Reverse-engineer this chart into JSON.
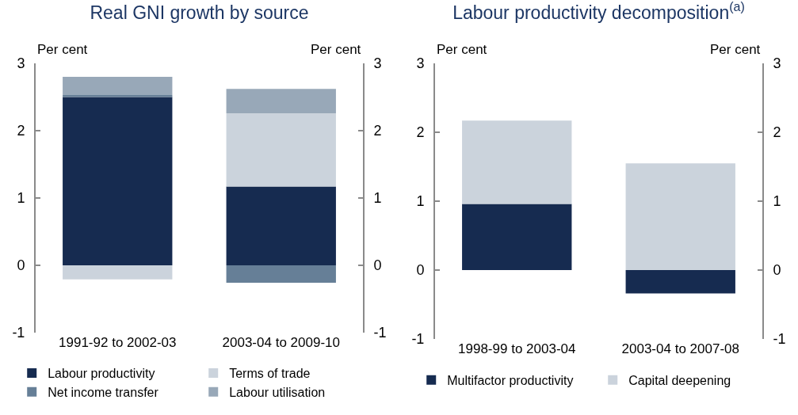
{
  "chart_data": [
    {
      "type": "bar",
      "title": "Real GNI growth by source",
      "ylabel": "Per cent",
      "y2label": "Per cent",
      "categories": [
        "1991-92 to 2002-03",
        "2003-04 to 2009-10"
      ],
      "stacked": true,
      "series": [
        {
          "name": "Labour productivity",
          "color": "#162b50",
          "values": [
            2.5,
            1.17
          ]
        },
        {
          "name": "Terms of trade",
          "color": "#cbd3dc",
          "values": [
            -0.21,
            1.09
          ]
        },
        {
          "name": "Net income transfer",
          "color": "#667f97",
          "values": [
            0.03,
            -0.26
          ]
        },
        {
          "name": "Labour utilisation",
          "color": "#98a8b8",
          "values": [
            0.27,
            0.36
          ]
        }
      ],
      "ylim": [
        -1,
        3
      ],
      "yticks": [
        -1,
        0,
        1,
        2,
        3
      ],
      "y2lim": [
        -1,
        3
      ],
      "y2ticks": [
        -1,
        0,
        1,
        2,
        3
      ],
      "grid": false,
      "legend": "bottom"
    },
    {
      "type": "bar",
      "title": "Labour productivity decomposition$^{(a)}$",
      "ylabel": "Per cent",
      "y2label": "Per cent",
      "categories": [
        "1998-99 to 2003-04",
        "2003-04 to 2007-08"
      ],
      "stacked": true,
      "series": [
        {
          "name": "Multifactor productivity",
          "color": "#162b50",
          "values": [
            0.96,
            -0.34
          ]
        },
        {
          "name": "Capital deepening",
          "color": "#cbd3dc",
          "values": [
            1.21,
            1.55
          ]
        }
      ],
      "ylim": [
        -1,
        3
      ],
      "yticks": [
        -1,
        0,
        1,
        2,
        3
      ],
      "y2lim": [
        -1,
        3
      ],
      "y2ticks": [
        -1,
        0,
        1,
        2,
        3
      ],
      "grid": false,
      "legend": "bottom"
    }
  ]
}
